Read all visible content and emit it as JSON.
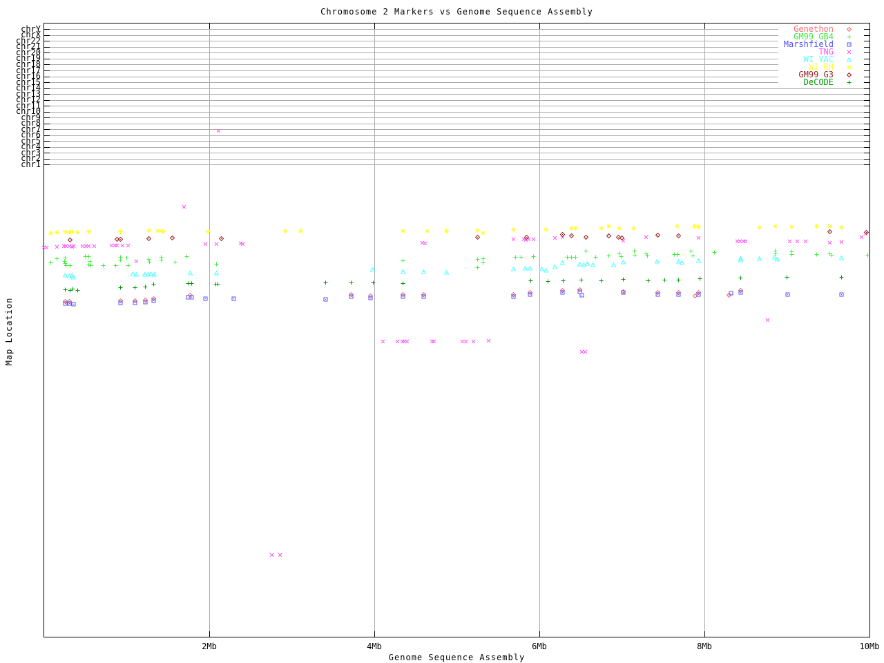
{
  "title": "Chromosome 2 Markers vs Genome Sequence Assembly",
  "x_axis": {
    "label": "Genome Sequence Assembly",
    "ticks": [
      {
        "mb": 2,
        "label": "2Mb"
      },
      {
        "mb": 4,
        "label": "4Mb"
      },
      {
        "mb": 6,
        "label": "6Mb"
      },
      {
        "mb": 8,
        "label": "8Mb"
      },
      {
        "mb": 10,
        "label": "10Mb"
      }
    ],
    "range_mb": [
      0,
      10
    ]
  },
  "y_axis": {
    "label": "Map Location",
    "chromosome_ticks": [
      "chrY",
      "chrX",
      "chr22",
      "chr21",
      "chr20",
      "chr19",
      "chr18",
      "chr17",
      "chr16",
      "chr15",
      "chr14",
      "chr13",
      "chr12",
      "chr11",
      "chr10",
      "chr9",
      "chr8",
      "chr7",
      "chr6",
      "chr5",
      "chr4",
      "chr3",
      "chr2",
      "chr1"
    ]
  },
  "legend": {
    "position": "top-right"
  },
  "chart_data": {
    "type": "scatter",
    "x_units": "Mb",
    "x_range": [
      0,
      10
    ],
    "y_note": "map location; no numeric y scale shown — y values below are screen pixel rows from image top",
    "grid": true,
    "series": [
      {
        "name": "Genethon",
        "marker": "diamond-dot",
        "color": "#ff6b6b",
        "points": [
          [
            0.26,
            436
          ],
          [
            0.31,
            436
          ],
          [
            0.93,
            435
          ],
          [
            1.1,
            435
          ],
          [
            1.23,
            434
          ],
          [
            1.33,
            432
          ],
          [
            1.77,
            427
          ],
          [
            3.72,
            426
          ],
          [
            3.96,
            428
          ],
          [
            4.35,
            426
          ],
          [
            4.6,
            426
          ],
          [
            5.69,
            426
          ],
          [
            5.89,
            423
          ],
          [
            6.28,
            420
          ],
          [
            6.49,
            419
          ],
          [
            7.02,
            422
          ],
          [
            7.44,
            423
          ],
          [
            7.69,
            423
          ],
          [
            7.89,
            428
          ],
          [
            7.93,
            423
          ],
          [
            8.3,
            427
          ],
          [
            8.44,
            420
          ]
        ]
      },
      {
        "name": "GM99 GB4",
        "marker": "plus",
        "color": "#44ee44",
        "points": [
          [
            0.08,
            380
          ],
          [
            0.16,
            374
          ],
          [
            0.25,
            378
          ],
          [
            0.26,
            373
          ],
          [
            0.26,
            381
          ],
          [
            0.27,
            384
          ],
          [
            0.32,
            384
          ],
          [
            0.5,
            371
          ],
          [
            0.54,
            371
          ],
          [
            0.56,
            378
          ],
          [
            0.54,
            383
          ],
          [
            0.57,
            384
          ],
          [
            0.72,
            384
          ],
          [
            0.87,
            384
          ],
          [
            0.93,
            372
          ],
          [
            0.93,
            376
          ],
          [
            1.0,
            373
          ],
          [
            1.02,
            384
          ],
          [
            1.27,
            375
          ],
          [
            1.28,
            379
          ],
          [
            1.42,
            372
          ],
          [
            1.42,
            376
          ],
          [
            1.59,
            379
          ],
          [
            1.73,
            371
          ],
          [
            2.09,
            382
          ],
          [
            4.35,
            377
          ],
          [
            5.25,
            375
          ],
          [
            5.25,
            387
          ],
          [
            5.32,
            374
          ],
          [
            5.32,
            380
          ],
          [
            5.71,
            372
          ],
          [
            5.78,
            372
          ],
          [
            5.93,
            371
          ],
          [
            6.34,
            372
          ],
          [
            6.39,
            372
          ],
          [
            6.44,
            372
          ],
          [
            6.57,
            363
          ],
          [
            6.68,
            372
          ],
          [
            6.84,
            370
          ],
          [
            6.97,
            367
          ],
          [
            6.99,
            371
          ],
          [
            7.15,
            363
          ],
          [
            7.16,
            369
          ],
          [
            7.29,
            367
          ],
          [
            7.31,
            370
          ],
          [
            7.64,
            368
          ],
          [
            7.68,
            368
          ],
          [
            7.84,
            363
          ],
          [
            7.86,
            370
          ],
          [
            8.12,
            365
          ],
          [
            8.86,
            363
          ],
          [
            8.86,
            367
          ],
          [
            9.06,
            364
          ],
          [
            9.06,
            368
          ],
          [
            9.36,
            368
          ],
          [
            9.52,
            367
          ],
          [
            9.54,
            369
          ],
          [
            9.98,
            369
          ]
        ]
      },
      {
        "name": "Marshfield",
        "marker": "square-dot",
        "color": "#5050ff",
        "points": [
          [
            0.26,
            439
          ],
          [
            0.31,
            439
          ],
          [
            0.36,
            440
          ],
          [
            0.93,
            438
          ],
          [
            1.1,
            438
          ],
          [
            1.23,
            437
          ],
          [
            1.33,
            435
          ],
          [
            1.75,
            430
          ],
          [
            1.79,
            430
          ],
          [
            1.96,
            432
          ],
          [
            2.3,
            432
          ],
          [
            3.41,
            433
          ],
          [
            3.72,
            429
          ],
          [
            3.96,
            431
          ],
          [
            4.35,
            429
          ],
          [
            4.6,
            429
          ],
          [
            5.69,
            429
          ],
          [
            5.89,
            426
          ],
          [
            6.28,
            423
          ],
          [
            6.49,
            422
          ],
          [
            6.52,
            427
          ],
          [
            7.02,
            423
          ],
          [
            7.44,
            426
          ],
          [
            7.69,
            426
          ],
          [
            7.93,
            426
          ],
          [
            8.32,
            424
          ],
          [
            8.44,
            423
          ],
          [
            9.01,
            426
          ],
          [
            9.66,
            426
          ]
        ]
      },
      {
        "name": "TNG",
        "marker": "x",
        "color": "#ff5cff",
        "points": [
          [
            0.0,
            358
          ],
          [
            0.03,
            358
          ],
          [
            0.16,
            357
          ],
          [
            0.24,
            356
          ],
          [
            0.27,
            356
          ],
          [
            0.31,
            356
          ],
          [
            0.34,
            357
          ],
          [
            0.36,
            356
          ],
          [
            0.47,
            356
          ],
          [
            0.51,
            356
          ],
          [
            0.54,
            356
          ],
          [
            0.61,
            356
          ],
          [
            0.82,
            355
          ],
          [
            0.86,
            355
          ],
          [
            0.89,
            355
          ],
          [
            0.95,
            355
          ],
          [
            1.02,
            355
          ],
          [
            1.12,
            378
          ],
          [
            1.7,
            299
          ],
          [
            1.96,
            353
          ],
          [
            2.09,
            353
          ],
          [
            2.12,
            189
          ],
          [
            2.38,
            352
          ],
          [
            2.41,
            353
          ],
          [
            2.76,
            803
          ],
          [
            2.86,
            803
          ],
          [
            4.11,
            494
          ],
          [
            4.28,
            494
          ],
          [
            4.34,
            494
          ],
          [
            4.37,
            494
          ],
          [
            4.4,
            494
          ],
          [
            4.58,
            351
          ],
          [
            4.62,
            352
          ],
          [
            4.7,
            494
          ],
          [
            4.73,
            494
          ],
          [
            5.07,
            494
          ],
          [
            5.11,
            494
          ],
          [
            5.2,
            494
          ],
          [
            5.39,
            493
          ],
          [
            5.69,
            346
          ],
          [
            5.81,
            346
          ],
          [
            5.84,
            347
          ],
          [
            5.87,
            346
          ],
          [
            5.93,
            346
          ],
          [
            6.19,
            344
          ],
          [
            6.28,
            343
          ],
          [
            6.52,
            509
          ],
          [
            6.56,
            509
          ],
          [
            7.02,
            348
          ],
          [
            7.29,
            343
          ],
          [
            7.93,
            344
          ],
          [
            8.4,
            349
          ],
          [
            8.43,
            349
          ],
          [
            8.47,
            349
          ],
          [
            8.5,
            349
          ],
          [
            8.77,
            463
          ],
          [
            9.03,
            349
          ],
          [
            9.13,
            349
          ],
          [
            9.23,
            349
          ],
          [
            9.52,
            351
          ],
          [
            9.66,
            350
          ],
          [
            9.9,
            343
          ],
          [
            9.95,
            338
          ]
        ]
      },
      {
        "name": "WI YAC",
        "marker": "triangle-dot",
        "color": "#55ffff",
        "points": [
          [
            0.26,
            398
          ],
          [
            0.31,
            399
          ],
          [
            0.34,
            398
          ],
          [
            0.36,
            401
          ],
          [
            1.08,
            396
          ],
          [
            1.12,
            397
          ],
          [
            1.22,
            397
          ],
          [
            1.26,
            397
          ],
          [
            1.3,
            396
          ],
          [
            1.34,
            397
          ],
          [
            1.77,
            395
          ],
          [
            2.09,
            395
          ],
          [
            3.98,
            390
          ],
          [
            4.35,
            393
          ],
          [
            4.6,
            393
          ],
          [
            4.88,
            394
          ],
          [
            5.69,
            389
          ],
          [
            5.83,
            388
          ],
          [
            5.89,
            388
          ],
          [
            6.03,
            389
          ],
          [
            6.08,
            391
          ],
          [
            6.19,
            386
          ],
          [
            6.28,
            380
          ],
          [
            6.49,
            382
          ],
          [
            6.54,
            383
          ],
          [
            6.58,
            381
          ],
          [
            6.65,
            383
          ],
          [
            6.9,
            383
          ],
          [
            7.02,
            379
          ],
          [
            7.43,
            378
          ],
          [
            7.69,
            378
          ],
          [
            7.73,
            380
          ],
          [
            7.93,
            377
          ],
          [
            8.44,
            374
          ],
          [
            8.44,
            376
          ],
          [
            8.67,
            374
          ],
          [
            8.85,
            372
          ],
          [
            8.88,
            375
          ],
          [
            9.66,
            373
          ]
        ]
      },
      {
        "name": "WI RH",
        "marker": "asterisk",
        "color": "#ffff33",
        "points": [
          [
            0.08,
            337
          ],
          [
            0.16,
            336
          ],
          [
            0.26,
            335
          ],
          [
            0.31,
            336
          ],
          [
            0.34,
            335
          ],
          [
            0.41,
            336
          ],
          [
            0.54,
            335
          ],
          [
            0.93,
            335
          ],
          [
            1.27,
            333
          ],
          [
            1.38,
            334
          ],
          [
            1.42,
            334
          ],
          [
            1.45,
            335
          ],
          [
            1.99,
            335
          ],
          [
            2.93,
            334
          ],
          [
            3.11,
            334
          ],
          [
            4.35,
            334
          ],
          [
            4.64,
            334
          ],
          [
            4.88,
            334
          ],
          [
            5.25,
            333
          ],
          [
            5.32,
            337
          ],
          [
            5.69,
            332
          ],
          [
            6.08,
            332
          ],
          [
            6.39,
            330
          ],
          [
            6.44,
            330
          ],
          [
            6.75,
            330
          ],
          [
            6.84,
            327
          ],
          [
            6.97,
            330
          ],
          [
            7.14,
            330
          ],
          [
            7.67,
            327
          ],
          [
            7.88,
            327
          ],
          [
            7.93,
            328
          ],
          [
            8.67,
            329
          ],
          [
            8.86,
            327
          ],
          [
            9.06,
            328
          ],
          [
            9.36,
            327
          ],
          [
            9.52,
            327
          ],
          [
            9.66,
            329
          ]
        ]
      },
      {
        "name": "GM99 G3",
        "marker": "diamond-dot",
        "color": "#a02828",
        "points": [
          [
            0.32,
            347
          ],
          [
            0.89,
            346
          ],
          [
            0.93,
            346
          ],
          [
            1.27,
            345
          ],
          [
            1.56,
            344
          ],
          [
            2.15,
            345
          ],
          [
            5.25,
            343
          ],
          [
            5.85,
            343
          ],
          [
            6.28,
            339
          ],
          [
            6.39,
            341
          ],
          [
            6.57,
            343
          ],
          [
            6.84,
            341
          ],
          [
            6.96,
            343
          ],
          [
            7.0,
            344
          ],
          [
            7.44,
            340
          ],
          [
            7.69,
            341
          ],
          [
            9.52,
            335
          ],
          [
            9.96,
            336
          ]
        ]
      },
      {
        "name": "DeCODE",
        "marker": "plus",
        "color": "#009900",
        "points": [
          [
            0.26,
            419
          ],
          [
            0.32,
            420
          ],
          [
            0.35,
            418
          ],
          [
            0.41,
            420
          ],
          [
            0.93,
            416
          ],
          [
            1.1,
            416
          ],
          [
            1.23,
            415
          ],
          [
            1.33,
            411
          ],
          [
            1.75,
            410
          ],
          [
            1.79,
            410
          ],
          [
            2.08,
            411
          ],
          [
            2.11,
            411
          ],
          [
            3.41,
            409
          ],
          [
            3.72,
            409
          ],
          [
            3.99,
            409
          ],
          [
            4.35,
            410
          ],
          [
            5.9,
            406
          ],
          [
            6.11,
            407
          ],
          [
            6.29,
            406
          ],
          [
            6.51,
            405
          ],
          [
            6.75,
            406
          ],
          [
            7.02,
            404
          ],
          [
            7.32,
            406
          ],
          [
            7.52,
            405
          ],
          [
            7.69,
            405
          ],
          [
            7.95,
            403
          ],
          [
            8.44,
            402
          ],
          [
            9.0,
            401
          ],
          [
            9.66,
            401
          ]
        ]
      }
    ]
  }
}
